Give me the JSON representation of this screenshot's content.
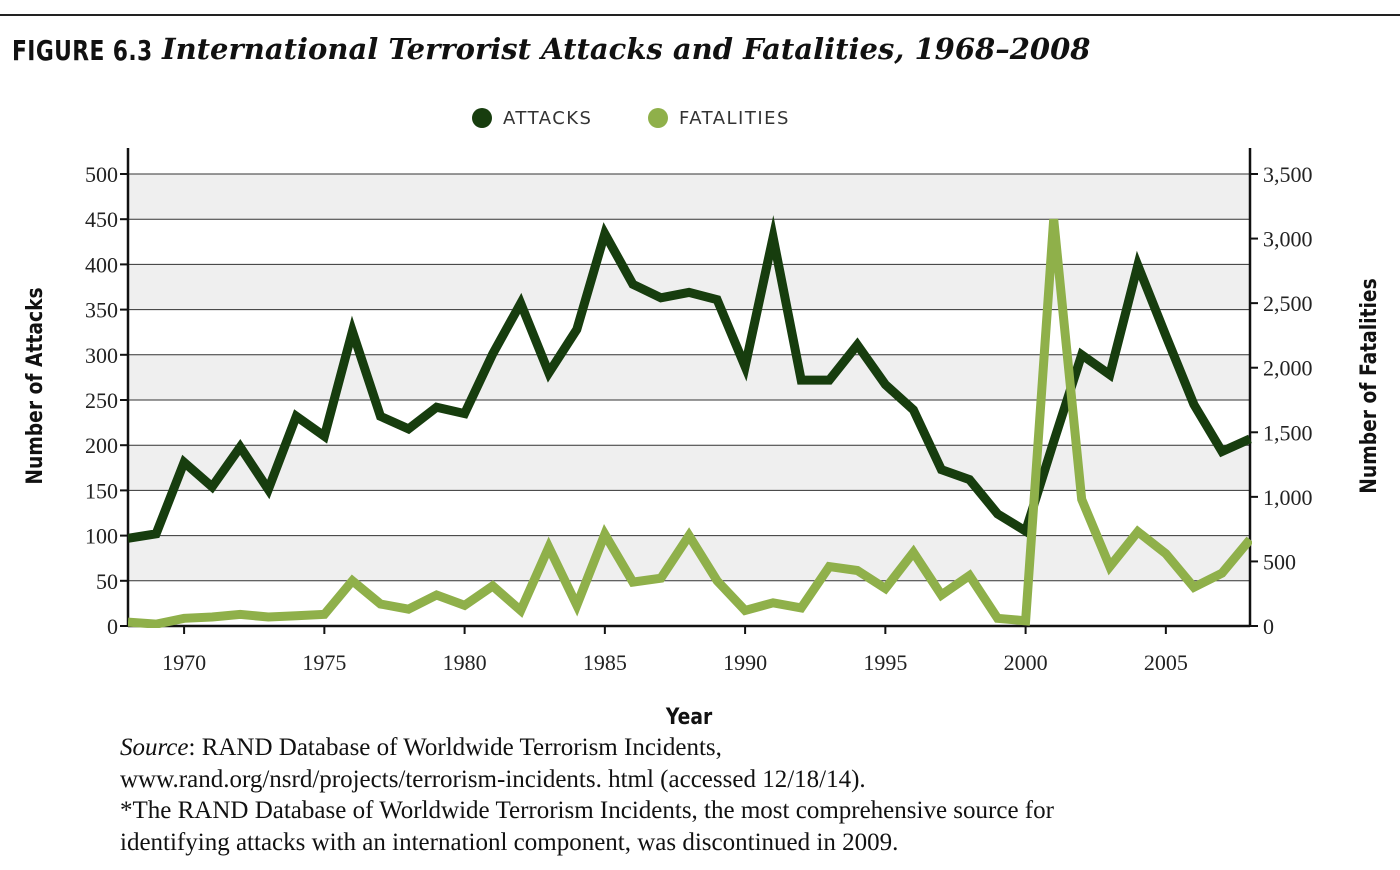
{
  "figure": {
    "label": "FIGURE 6.3",
    "title": "International Terrorist Attacks and Fatalities, 1968–2008"
  },
  "notes": {
    "source_label": "Source",
    "source_text": ": RAND Database of Worldwide Terrorism Incidents,",
    "source_url_line": "www.rand.org/nsrd/projects/terrorism-incidents. html (accessed 12/18/14).",
    "footnote_line1": "*The RAND Database of Worldwide Terrorism Incidents, the most comprehensive source for",
    "footnote_line2": "identifying attacks with an internationl component, was discontinued in 2009."
  },
  "colors": {
    "attacks": "#173d0e",
    "fatalities": "#8fb04a",
    "band": "#efefef",
    "grid": "#333333"
  },
  "chart_data": {
    "type": "line",
    "xlabel": "Year",
    "ylabel": "Number of Attacks",
    "y2label": "Number of Fatalities",
    "xlim": [
      1968,
      2008
    ],
    "ylim": [
      0,
      500
    ],
    "y2lim": [
      0,
      3500
    ],
    "x_ticks": [
      1970,
      1975,
      1980,
      1985,
      1990,
      1995,
      2000,
      2005
    ],
    "y_ticks": [
      0,
      50,
      100,
      150,
      200,
      250,
      300,
      350,
      400,
      450,
      500
    ],
    "y_tick_labels": [
      "0",
      "50",
      "100",
      "150",
      "200",
      "250",
      "300",
      "350",
      "400",
      "450",
      "500"
    ],
    "y2_ticks": [
      0,
      500,
      1000,
      1500,
      2000,
      2500,
      3000,
      3500
    ],
    "y2_tick_labels": [
      "0",
      "500",
      "1,000",
      "1,500",
      "2,000",
      "2,500",
      "3,000",
      "3,500"
    ],
    "grid": true,
    "legend_position": "top-center",
    "x": [
      1968,
      1969,
      1970,
      1971,
      1972,
      1973,
      1974,
      1975,
      1976,
      1977,
      1978,
      1979,
      1980,
      1981,
      1982,
      1983,
      1984,
      1985,
      1986,
      1987,
      1988,
      1989,
      1990,
      1991,
      1992,
      1993,
      1994,
      1995,
      1996,
      1997,
      1998,
      1999,
      2000,
      2001,
      2002,
      2003,
      2004,
      2005,
      2006,
      2007,
      2008
    ],
    "series": [
      {
        "name": "ATTACKS",
        "axis": "left",
        "values": [
          97,
          102,
          181,
          154,
          198,
          151,
          232,
          210,
          326,
          232,
          218,
          242,
          235,
          301,
          357,
          280,
          328,
          434,
          378,
          363,
          369,
          361,
          287,
          430,
          272,
          272,
          311,
          267,
          239,
          173,
          162,
          124,
          105,
          204,
          300,
          278,
          399,
          321,
          245,
          193,
          207
        ]
      },
      {
        "name": "FATALITIES",
        "axis": "right",
        "values": [
          30,
          15,
          60,
          70,
          90,
          70,
          80,
          90,
          350,
          170,
          130,
          240,
          160,
          310,
          120,
          610,
          160,
          710,
          340,
          370,
          700,
          350,
          120,
          180,
          140,
          460,
          430,
          290,
          570,
          240,
          390,
          60,
          40,
          3150,
          980,
          460,
          730,
          560,
          300,
          410,
          670
        ]
      }
    ]
  }
}
